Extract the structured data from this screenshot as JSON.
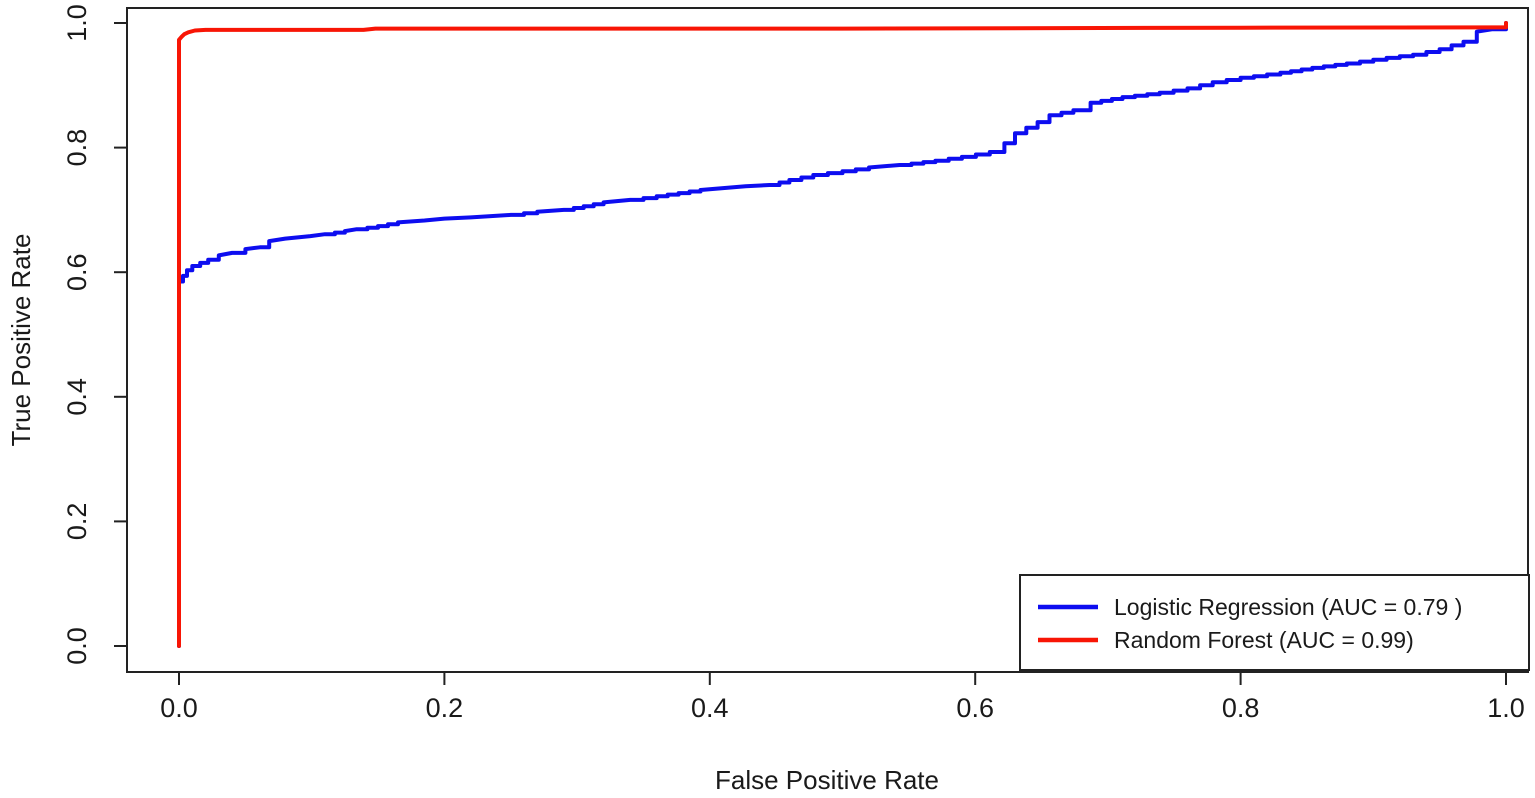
{
  "figure": {
    "background": "#ffffff",
    "axis_color": "#222222",
    "text_color": "#1a1a1a"
  },
  "chart_data": {
    "type": "line",
    "title": "",
    "xlabel": "False Positive Rate",
    "ylabel": "True Positive Rate",
    "xlim": [
      0,
      1
    ],
    "ylim": [
      0,
      1
    ],
    "grid": false,
    "xticks": [
      "0.0",
      "0.2",
      "0.4",
      "0.6",
      "0.8",
      "1.0"
    ],
    "yticks": [
      "0.0",
      "0.2",
      "0.4",
      "0.6",
      "0.8",
      "1.0"
    ],
    "legend": {
      "position": "bottom-right",
      "entries": [
        {
          "label": "Logistic Regression (AUC = 0.79 )",
          "color": "#0d0df0"
        },
        {
          "label": "Random Forest (AUC =  0.99)",
          "color": "#f81505"
        }
      ]
    },
    "series": [
      {
        "name": "Logistic Regression",
        "auc": 0.79,
        "color": "#0d0df0",
        "style": "staircase",
        "points": [
          [
            0.0,
            0.0
          ],
          [
            0.0,
            0.585
          ],
          [
            0.003,
            0.594
          ],
          [
            0.006,
            0.603
          ],
          [
            0.01,
            0.61
          ],
          [
            0.016,
            0.615
          ],
          [
            0.022,
            0.62
          ],
          [
            0.03,
            0.627
          ],
          [
            0.04,
            0.631
          ],
          [
            0.05,
            0.637
          ],
          [
            0.061,
            0.64
          ],
          [
            0.068,
            0.65
          ],
          [
            0.08,
            0.654
          ],
          [
            0.099,
            0.658
          ],
          [
            0.11,
            0.661
          ],
          [
            0.125,
            0.666
          ],
          [
            0.134,
            0.669
          ],
          [
            0.15,
            0.674
          ],
          [
            0.165,
            0.68
          ],
          [
            0.185,
            0.683
          ],
          [
            0.2,
            0.686
          ],
          [
            0.22,
            0.688
          ],
          [
            0.25,
            0.692
          ],
          [
            0.27,
            0.697
          ],
          [
            0.29,
            0.7
          ],
          [
            0.305,
            0.706
          ],
          [
            0.32,
            0.712
          ],
          [
            0.34,
            0.716
          ],
          [
            0.36,
            0.722
          ],
          [
            0.393,
            0.732
          ],
          [
            0.41,
            0.735
          ],
          [
            0.427,
            0.738
          ],
          [
            0.445,
            0.74
          ],
          [
            0.46,
            0.748
          ],
          [
            0.478,
            0.756
          ],
          [
            0.5,
            0.762
          ],
          [
            0.52,
            0.768
          ],
          [
            0.543,
            0.772
          ],
          [
            0.57,
            0.779
          ],
          [
            0.59,
            0.785
          ],
          [
            0.611,
            0.793
          ],
          [
            0.622,
            0.807
          ],
          [
            0.63,
            0.823
          ],
          [
            0.647,
            0.841
          ],
          [
            0.656,
            0.852
          ],
          [
            0.674,
            0.86
          ],
          [
            0.687,
            0.872
          ],
          [
            0.711,
            0.881
          ],
          [
            0.739,
            0.888
          ],
          [
            0.76,
            0.895
          ],
          [
            0.779,
            0.905
          ],
          [
            0.8,
            0.912
          ],
          [
            0.83,
            0.92
          ],
          [
            0.854,
            0.928
          ],
          [
            0.88,
            0.935
          ],
          [
            0.91,
            0.944
          ],
          [
            0.93,
            0.949
          ],
          [
            0.95,
            0.958
          ],
          [
            0.968,
            0.97
          ],
          [
            0.978,
            0.986
          ],
          [
            0.99,
            0.99
          ],
          [
            1.0,
            1.0
          ]
        ]
      },
      {
        "name": "Random Forest",
        "auc": 0.99,
        "color": "#f81505",
        "style": "staircase",
        "points": [
          [
            0.0,
            0.0
          ],
          [
            0.0,
            0.973
          ],
          [
            0.002,
            0.978
          ],
          [
            0.004,
            0.982
          ],
          [
            0.007,
            0.985
          ],
          [
            0.012,
            0.988
          ],
          [
            0.02,
            0.989
          ],
          [
            0.139,
            0.989
          ],
          [
            0.148,
            0.991
          ],
          [
            0.5,
            0.991
          ],
          [
            0.8,
            0.9925
          ],
          [
            0.99,
            0.993
          ],
          [
            1.0,
            1.0
          ]
        ]
      }
    ]
  }
}
